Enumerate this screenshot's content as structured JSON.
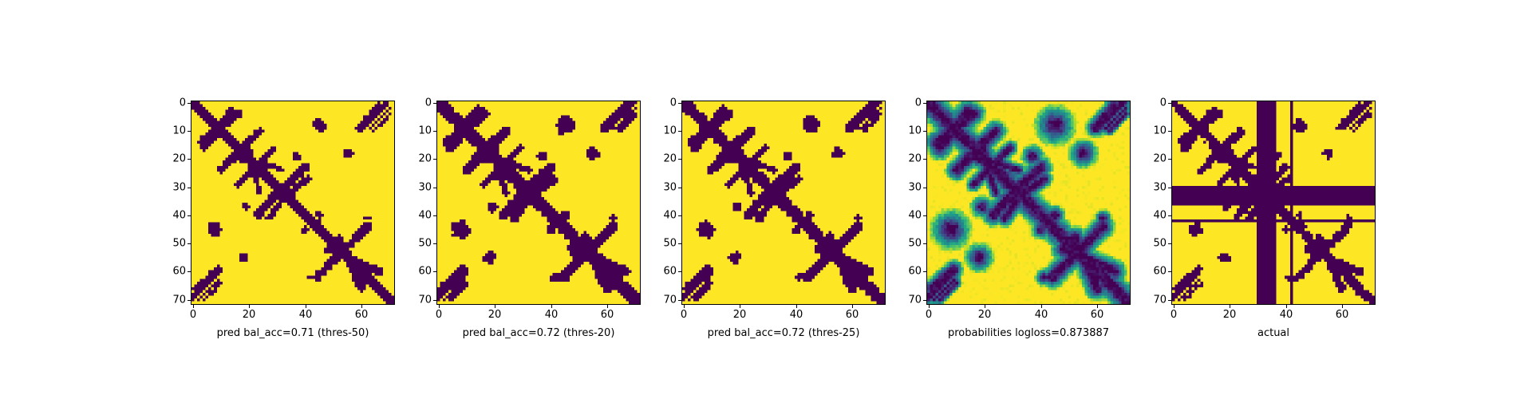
{
  "chart_data": [
    {
      "type": "heatmap",
      "xlabel": "pred bal_acc=0.71 (thres-50)",
      "xticks": [
        0,
        20,
        40,
        60
      ],
      "yticks": [
        0,
        10,
        20,
        30,
        40,
        50,
        60,
        70
      ],
      "xlim": [
        0,
        71
      ],
      "ylim": [
        71,
        0
      ],
      "grid": false,
      "colormap": "viridis-binary",
      "variant": "pred-strict"
    },
    {
      "type": "heatmap",
      "xlabel": "pred bal_acc=0.72 (thres-20)",
      "xticks": [
        0,
        20,
        40,
        60
      ],
      "yticks": [
        0,
        10,
        20,
        30,
        40,
        50,
        60,
        70
      ],
      "xlim": [
        0,
        71
      ],
      "ylim": [
        71,
        0
      ],
      "grid": false,
      "colormap": "viridis-binary",
      "variant": "pred-loose"
    },
    {
      "type": "heatmap",
      "xlabel": "pred bal_acc=0.72 (thres-25)",
      "xticks": [
        0,
        20,
        40,
        60
      ],
      "yticks": [
        0,
        10,
        20,
        30,
        40,
        50,
        60,
        70
      ],
      "xlim": [
        0,
        71
      ],
      "ylim": [
        71,
        0
      ],
      "grid": false,
      "colormap": "viridis-binary",
      "variant": "pred-mid"
    },
    {
      "type": "heatmap",
      "xlabel": "probabilities logloss=0.873887",
      "xticks": [
        0,
        20,
        40,
        60
      ],
      "yticks": [
        0,
        10,
        20,
        30,
        40,
        50,
        60,
        70
      ],
      "xlim": [
        0,
        71
      ],
      "ylim": [
        71,
        0
      ],
      "grid": false,
      "colormap": "viridis",
      "variant": "probabilities"
    },
    {
      "type": "heatmap",
      "xlabel": "actual",
      "xticks": [
        0,
        20,
        40,
        60
      ],
      "yticks": [
        0,
        10,
        20,
        30,
        40,
        50,
        60,
        70
      ],
      "xlim": [
        0,
        71
      ],
      "ylim": [
        71,
        0
      ],
      "grid": false,
      "colormap": "viridis-binary",
      "variant": "actual"
    }
  ],
  "colors": {
    "low": "#440154",
    "high": "#fde725"
  }
}
